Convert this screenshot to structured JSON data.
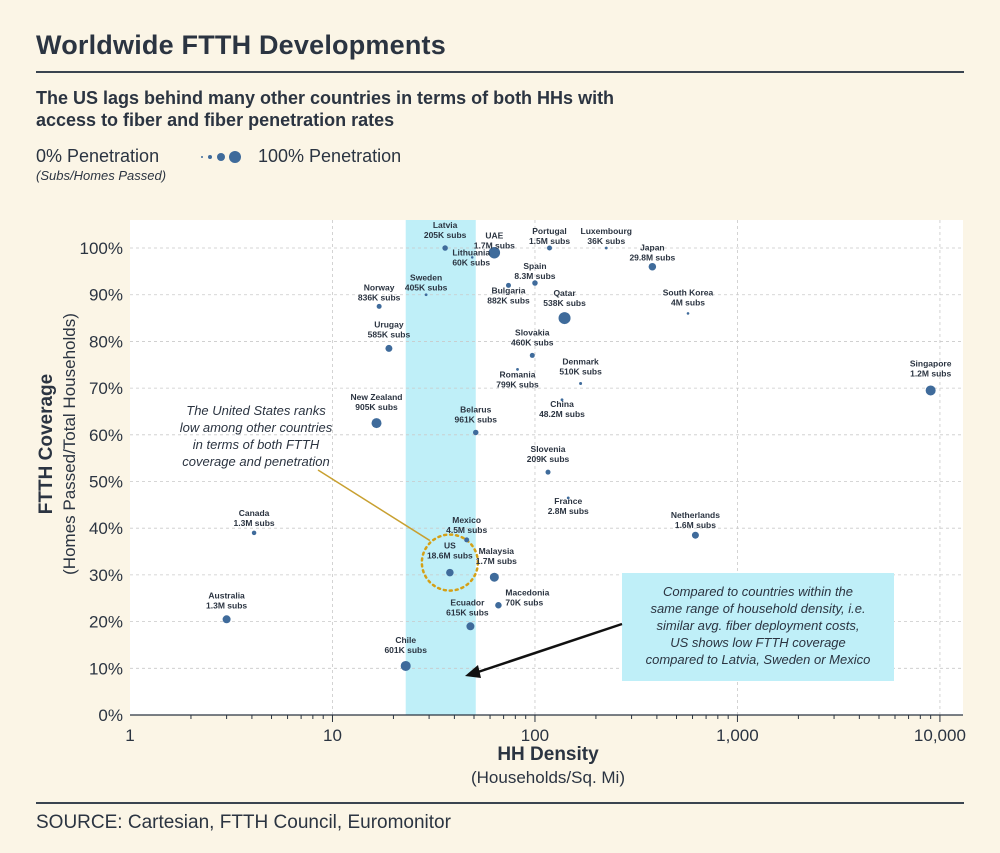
{
  "title": "Worldwide FTTH Developments",
  "subtitle": "The US lags behind many other countries in terms of both HHs with access to fiber and fiber penetration rates",
  "legend": {
    "left_label": "0% Penetration",
    "left_note": "(Subs/Homes Passed)",
    "right_label": "100% Penetration"
  },
  "source": "SOURCE: Cartesian, FTTH Council, Euromonitor",
  "colors": {
    "point": "#3f6b9b",
    "highlight_band": "#bfeff8",
    "annotation_box": "#bfeff8",
    "us_circle": "#d4a017",
    "callout_line": "#c8a030",
    "background": "#fbf5e6"
  },
  "annotations": {
    "us_callout": [
      "The United States ranks",
      "low among other countries",
      "in terms of both FTTH",
      "coverage and penetration"
    ],
    "box_callout": [
      "Compared to countries within the",
      "same range of household density, i.e.",
      "similar avg. fiber deployment costs,",
      "US shows low FTTH coverage",
      "compared to Latvia, Sweden or Mexico"
    ]
  },
  "chart_data": {
    "type": "scatter",
    "xlabel": "HH Density",
    "xlabel_sub": "(Households/Sq. Mi)",
    "ylabel": "FTTH Coverage",
    "ylabel_sub": "(Homes Passed/Total Households)",
    "x_scale": "log",
    "xlim": [
      1,
      13000
    ],
    "ylim": [
      0,
      1.06
    ],
    "x_ticks": [
      1,
      10,
      100,
      1000,
      10000
    ],
    "x_tick_labels": [
      "1",
      "10",
      "100",
      "1,000",
      "10,000"
    ],
    "y_ticks": [
      0,
      0.1,
      0.2,
      0.3,
      0.4,
      0.5,
      0.6,
      0.7,
      0.8,
      0.9,
      1.0
    ],
    "y_tick_labels": [
      "0%",
      "10%",
      "20%",
      "30%",
      "40%",
      "50%",
      "60%",
      "70%",
      "80%",
      "90%",
      "100%"
    ],
    "grid": true,
    "highlight_band_x": [
      23,
      51
    ],
    "points": [
      {
        "country": "Latvia",
        "subs": "205K subs",
        "x": 36,
        "y": 1.0,
        "penetration": 0.35
      },
      {
        "country": "UAE",
        "subs": "1.7M subs",
        "x": 63,
        "y": 0.99,
        "penetration": 0.95
      },
      {
        "country": "Portugal",
        "subs": "1.5M subs",
        "x": 118,
        "y": 1.0,
        "penetration": 0.3
      },
      {
        "country": "Luxembourg",
        "subs": "36K subs",
        "x": 225,
        "y": 1.0,
        "penetration": 0.08
      },
      {
        "country": "Lithuania",
        "subs": "60K subs",
        "x": 49,
        "y": 0.98,
        "penetration": 0.05
      },
      {
        "country": "Japan",
        "subs": "29.8M subs",
        "x": 380,
        "y": 0.96,
        "penetration": 0.55
      },
      {
        "country": "Spain",
        "subs": "8.3M subs",
        "x": 100,
        "y": 0.925,
        "penetration": 0.35
      },
      {
        "country": "Norway",
        "subs": "836K subs",
        "x": 17,
        "y": 0.875,
        "penetration": 0.3
      },
      {
        "country": "Sweden",
        "subs": "405K subs",
        "x": 29,
        "y": 0.9,
        "penetration": 0.08
      },
      {
        "country": "Bulgaria",
        "subs": "882K subs",
        "x": 74,
        "y": 0.92,
        "penetration": 0.3
      },
      {
        "country": "Qatar",
        "subs": "538K subs",
        "x": 140,
        "y": 0.85,
        "penetration": 1.0
      },
      {
        "country": "South Korea",
        "subs": "4M subs",
        "x": 570,
        "y": 0.86,
        "penetration": 0.06
      },
      {
        "country": "Urugay",
        "subs": "585K subs",
        "x": 19,
        "y": 0.785,
        "penetration": 0.5
      },
      {
        "country": "Slovakia",
        "subs": "460K subs",
        "x": 97,
        "y": 0.77,
        "penetration": 0.3
      },
      {
        "country": "Romania",
        "subs": "799K subs",
        "x": 82,
        "y": 0.74,
        "penetration": 0.08
      },
      {
        "country": "Denmark",
        "subs": "510K subs",
        "x": 168,
        "y": 0.71,
        "penetration": 0.1
      },
      {
        "country": "Singapore",
        "subs": "1.2M subs",
        "x": 9000,
        "y": 0.695,
        "penetration": 0.8
      },
      {
        "country": "China",
        "subs": "48.2M subs",
        "x": 136,
        "y": 0.675,
        "penetration": 0.08
      },
      {
        "country": "New Zealand",
        "subs": "905K subs",
        "x": 16.5,
        "y": 0.625,
        "penetration": 0.8
      },
      {
        "country": "Belarus",
        "subs": "961K subs",
        "x": 51,
        "y": 0.605,
        "penetration": 0.35
      },
      {
        "country": "Slovenia",
        "subs": "209K subs",
        "x": 116,
        "y": 0.52,
        "penetration": 0.3
      },
      {
        "country": "France",
        "subs": "2.8M subs",
        "x": 146,
        "y": 0.465,
        "penetration": 0.08
      },
      {
        "country": "Canada",
        "subs": "1.3M subs",
        "x": 4.1,
        "y": 0.39,
        "penetration": 0.25
      },
      {
        "country": "Netherlands",
        "subs": "1.6M subs",
        "x": 620,
        "y": 0.385,
        "penetration": 0.5
      },
      {
        "country": "Mexico",
        "subs": "4.5M subs",
        "x": 46,
        "y": 0.375,
        "penetration": 0.3
      },
      {
        "country": "US",
        "subs": "18.6M subs",
        "x": 38,
        "y": 0.305,
        "penetration": 0.55
      },
      {
        "country": "Malaysia",
        "subs": "1.7M subs",
        "x": 63,
        "y": 0.295,
        "penetration": 0.7
      },
      {
        "country": "Macedonia",
        "subs": "70K subs",
        "x": 66,
        "y": 0.235,
        "penetration": 0.45
      },
      {
        "country": "Australia",
        "subs": "1.3M subs",
        "x": 3.0,
        "y": 0.205,
        "penetration": 0.6
      },
      {
        "country": "Ecuador",
        "subs": "615K subs",
        "x": 48,
        "y": 0.19,
        "penetration": 0.6
      },
      {
        "country": "Chile",
        "subs": "601K subs",
        "x": 23,
        "y": 0.105,
        "penetration": 0.8
      }
    ]
  }
}
